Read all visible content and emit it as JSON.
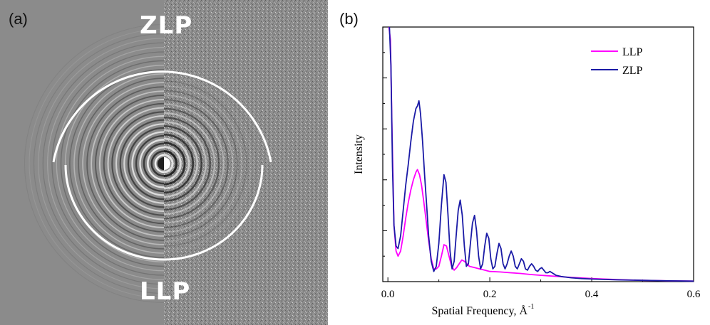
{
  "panel_a": {
    "label": "(a)",
    "top_label": "ZLP",
    "bottom_label": "LLP",
    "colors": {
      "background_left": "#8a8a8a",
      "background_right": "#8a8a8a",
      "arc": "#ffffff"
    }
  },
  "panel_b": {
    "label": "(b)"
  },
  "chart_data": {
    "type": "line",
    "xlabel": "Spatial Frequency, Å",
    "xlabel_superscript": "-1",
    "ylabel": "Intensity",
    "xlim": [
      -0.01,
      0.6
    ],
    "ylim": [
      0,
      1.0
    ],
    "x_ticks": [
      0.0,
      0.2,
      0.4,
      0.6
    ],
    "x_tick_labels": [
      "0.0",
      "0.2",
      "0.4",
      "0.6"
    ],
    "y_tick_labels_shown": false,
    "grid": false,
    "legend_position": "top-right",
    "series": [
      {
        "name": "LLP",
        "color": "#ff00ff",
        "x": [
          0.002,
          0.005,
          0.008,
          0.012,
          0.016,
          0.02,
          0.025,
          0.03,
          0.035,
          0.04,
          0.045,
          0.05,
          0.055,
          0.058,
          0.062,
          0.066,
          0.07,
          0.075,
          0.08,
          0.085,
          0.09,
          0.095,
          0.1,
          0.105,
          0.11,
          0.115,
          0.12,
          0.125,
          0.13,
          0.135,
          0.14,
          0.145,
          0.15,
          0.155,
          0.16,
          0.17,
          0.18,
          0.19,
          0.2,
          0.22,
          0.24,
          0.26,
          0.28,
          0.3,
          0.35,
          0.4,
          0.45,
          0.5,
          0.55,
          0.6
        ],
        "y": [
          1.0,
          0.95,
          0.6,
          0.22,
          0.12,
          0.1,
          0.12,
          0.18,
          0.25,
          0.31,
          0.36,
          0.4,
          0.43,
          0.44,
          0.42,
          0.38,
          0.32,
          0.24,
          0.16,
          0.09,
          0.05,
          0.05,
          0.06,
          0.1,
          0.145,
          0.14,
          0.1,
          0.06,
          0.045,
          0.055,
          0.07,
          0.085,
          0.08,
          0.07,
          0.06,
          0.055,
          0.05,
          0.045,
          0.04,
          0.038,
          0.035,
          0.032,
          0.028,
          0.025,
          0.018,
          0.012,
          0.008,
          0.005,
          0.003,
          0.002
        ]
      },
      {
        "name": "ZLP",
        "color": "#1a1aa6",
        "x": [
          0.003,
          0.006,
          0.009,
          0.012,
          0.016,
          0.02,
          0.025,
          0.03,
          0.035,
          0.04,
          0.045,
          0.05,
          0.055,
          0.058,
          0.061,
          0.064,
          0.068,
          0.072,
          0.076,
          0.08,
          0.085,
          0.09,
          0.095,
          0.1,
          0.105,
          0.11,
          0.114,
          0.118,
          0.122,
          0.126,
          0.13,
          0.134,
          0.138,
          0.142,
          0.146,
          0.15,
          0.154,
          0.158,
          0.162,
          0.166,
          0.17,
          0.174,
          0.178,
          0.182,
          0.186,
          0.19,
          0.194,
          0.198,
          0.202,
          0.206,
          0.21,
          0.214,
          0.218,
          0.222,
          0.226,
          0.23,
          0.234,
          0.238,
          0.242,
          0.246,
          0.25,
          0.254,
          0.258,
          0.262,
          0.266,
          0.27,
          0.274,
          0.278,
          0.282,
          0.286,
          0.29,
          0.294,
          0.298,
          0.302,
          0.306,
          0.31,
          0.314,
          0.318,
          0.322,
          0.326,
          0.33,
          0.34,
          0.36,
          0.38,
          0.4,
          0.45,
          0.5,
          0.55,
          0.6
        ],
        "y": [
          1.0,
          0.85,
          0.45,
          0.22,
          0.14,
          0.13,
          0.18,
          0.28,
          0.38,
          0.46,
          0.55,
          0.63,
          0.68,
          0.69,
          0.71,
          0.66,
          0.55,
          0.42,
          0.3,
          0.18,
          0.08,
          0.04,
          0.06,
          0.15,
          0.3,
          0.42,
          0.39,
          0.26,
          0.12,
          0.05,
          0.08,
          0.18,
          0.28,
          0.32,
          0.26,
          0.14,
          0.06,
          0.07,
          0.15,
          0.23,
          0.26,
          0.2,
          0.1,
          0.05,
          0.07,
          0.14,
          0.19,
          0.17,
          0.09,
          0.05,
          0.06,
          0.11,
          0.15,
          0.13,
          0.07,
          0.05,
          0.07,
          0.1,
          0.12,
          0.1,
          0.06,
          0.05,
          0.07,
          0.09,
          0.08,
          0.05,
          0.045,
          0.06,
          0.07,
          0.06,
          0.045,
          0.04,
          0.05,
          0.055,
          0.045,
          0.035,
          0.035,
          0.04,
          0.035,
          0.03,
          0.025,
          0.02,
          0.015,
          0.012,
          0.01,
          0.007,
          0.005,
          0.003,
          0.002
        ]
      }
    ]
  }
}
